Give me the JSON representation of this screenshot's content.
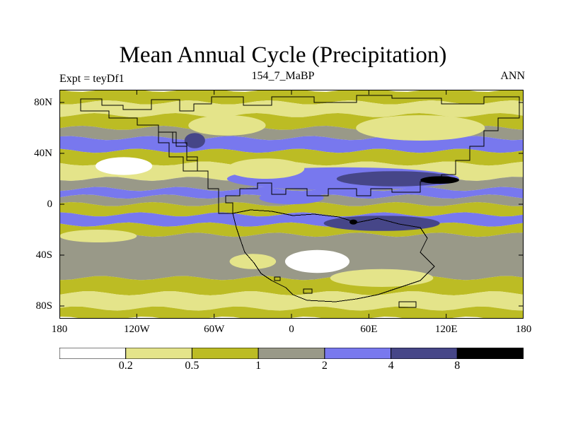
{
  "title": "Mean Annual Cycle (Precipitation)",
  "labels": {
    "left": "Expt = teyDf1",
    "center": "154_7_MaBP",
    "right": "ANN"
  },
  "map": {
    "projection": "cylindrical equidistant",
    "lon_range": [
      -180,
      180
    ],
    "lat_range": [
      -90,
      90
    ],
    "y_ticks": [
      {
        "label": "80N",
        "lat": 80
      },
      {
        "label": "40N",
        "lat": 40
      },
      {
        "label": "0",
        "lat": 0
      },
      {
        "label": "40S",
        "lat": -40
      },
      {
        "label": "80S",
        "lat": -80
      }
    ],
    "x_ticks": [
      {
        "label": "180",
        "lon": -180
      },
      {
        "label": "120W",
        "lon": -120
      },
      {
        "label": "60W",
        "lon": -60
      },
      {
        "label": "0",
        "lon": 0
      },
      {
        "label": "60E",
        "lon": 60
      },
      {
        "label": "120E",
        "lon": 120
      },
      {
        "label": "180",
        "lon": 180
      }
    ],
    "zonal_bands": [
      {
        "lat": [
          80,
          90
        ],
        "level": 2
      },
      {
        "lat": [
          70,
          80
        ],
        "level": 1
      },
      {
        "lat": [
          60,
          70
        ],
        "level": 2
      },
      {
        "lat": [
          52,
          60
        ],
        "level": 3
      },
      {
        "lat": [
          42,
          52
        ],
        "level": 4
      },
      {
        "lat": [
          32,
          42
        ],
        "level": 2
      },
      {
        "lat": [
          20,
          32
        ],
        "level": 1
      },
      {
        "lat": [
          12,
          20
        ],
        "level": 3
      },
      {
        "lat": [
          6,
          12
        ],
        "level": 4
      },
      {
        "lat": [
          0,
          6
        ],
        "level": 3
      },
      {
        "lat": [
          -8,
          0
        ],
        "level": 2
      },
      {
        "lat": [
          -16,
          -8
        ],
        "level": 4
      },
      {
        "lat": [
          -24,
          -16
        ],
        "level": 2
      },
      {
        "lat": [
          -58,
          -24
        ],
        "level": 3
      },
      {
        "lat": [
          -70,
          -58
        ],
        "level": 2
      },
      {
        "lat": [
          -82,
          -70
        ],
        "level": 1
      },
      {
        "lat": [
          -90,
          -82
        ],
        "level": 2
      }
    ],
    "patches": [
      {
        "lon": 40,
        "lat": 20,
        "rlon": 90,
        "rlat": 9,
        "level": 4
      },
      {
        "lon": 80,
        "lat": 20,
        "rlon": 45,
        "rlat": 6,
        "level": 5
      },
      {
        "lon": 115,
        "lat": 19,
        "rlon": 15,
        "rlat": 3,
        "level": 6
      },
      {
        "lon": 70,
        "lat": -15,
        "rlon": 45,
        "rlat": 6,
        "level": 5
      },
      {
        "lon": 48,
        "lat": -14,
        "rlon": 3,
        "rlat": 2,
        "level": 6
      },
      {
        "lon": -130,
        "lat": 30,
        "rlon": 22,
        "rlat": 7,
        "level": 0
      },
      {
        "lon": -75,
        "lat": 50,
        "rlon": 8,
        "rlat": 6,
        "level": 5
      },
      {
        "lon": -20,
        "lat": 28,
        "rlon": 30,
        "rlat": 8,
        "level": 1
      },
      {
        "lon": 20,
        "lat": -45,
        "rlon": 25,
        "rlat": 9,
        "level": 0
      },
      {
        "lon": -30,
        "lat": -45,
        "rlon": 18,
        "rlat": 6,
        "level": 1
      },
      {
        "lon": 70,
        "lat": -58,
        "rlon": 40,
        "rlat": 7,
        "level": 1
      },
      {
        "lon": -150,
        "lat": -25,
        "rlon": 30,
        "rlat": 5,
        "level": 1
      },
      {
        "lon": 100,
        "lat": 60,
        "rlon": 50,
        "rlat": 10,
        "level": 1
      },
      {
        "lon": -50,
        "lat": 62,
        "rlon": 30,
        "rlat": 8,
        "level": 1
      },
      {
        "lon": 0,
        "lat": 5,
        "rlon": 25,
        "rlat": 5,
        "level": 4
      }
    ]
  },
  "colorbar": {
    "colors": [
      "#ffffff",
      "#e4e48a",
      "#bcbc24",
      "#999988",
      "#7878ee",
      "#464688",
      "#000000"
    ],
    "thresholds": [
      "0.2",
      "0.5",
      "1",
      "2",
      "4",
      "8"
    ]
  }
}
